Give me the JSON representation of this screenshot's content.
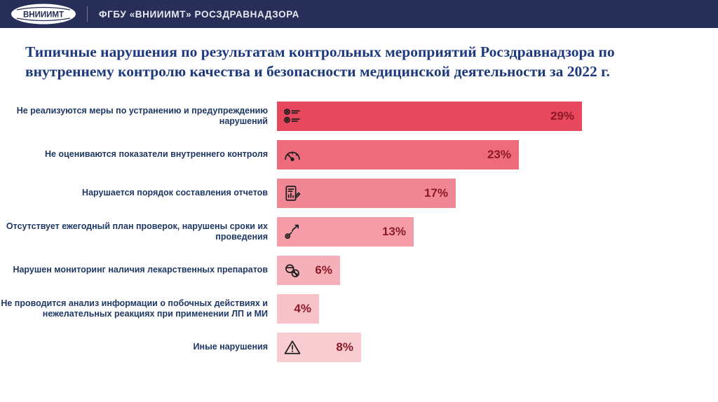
{
  "header": {
    "logo_text": "ВНИИИМТ",
    "org_text": "ФГБУ «ВНИИИМТ» РОСЗДРАВНАДЗОРА"
  },
  "title": "Типичные нарушения по результатам контрольных мероприятий Росздравнадзора по внутреннему контролю качества и безопасности медицинской деятельности за 2022 г.",
  "chart_data": {
    "type": "bar",
    "orientation": "horizontal",
    "title": "Типичные нарушения по результатам контрольных мероприятий Росздравнадзора по внутреннему контролю качества и безопасности медицинской деятельности за 2022 г.",
    "categories": [
      "Не реализуются меры по устранению и предупреждению нарушений",
      "Не оцениваются показатели внутреннего контроля",
      "Нарушается порядок составления отчетов",
      "Отсутствует ежегодный план проверок, нарушены сроки их проведения",
      "Нарушен мониторинг наличия лекарственных препаратов",
      "Не проводится анализ информации о побочных действиях и нежелательных реакциях при применении ЛП и МИ",
      "Иные нарушения"
    ],
    "values": [
      29,
      23,
      17,
      13,
      6,
      4,
      8
    ],
    "value_labels": [
      "29%",
      "23%",
      "17%",
      "13%",
      "6%",
      "4%",
      "8%"
    ],
    "icons": [
      "checklist-x-icon",
      "speedometer-icon",
      "report-document-icon",
      "route-plan-icon",
      "pills-icon",
      "",
      "warning-triangle-icon"
    ],
    "bar_colors": [
      "#e8485e",
      "#ee6b7b",
      "#f18794",
      "#f49da8",
      "#f6b0b9",
      "#f8c2c9",
      "#f9ccd2"
    ],
    "xlim": [
      0,
      30
    ],
    "grid": false,
    "legend": "none",
    "xlabel": "",
    "ylabel": ""
  },
  "colors": {
    "header_bg": "#272e58",
    "title_text": "#1e3a7e",
    "label_text": "#1f3864",
    "value_text": "#8c1a26"
  }
}
